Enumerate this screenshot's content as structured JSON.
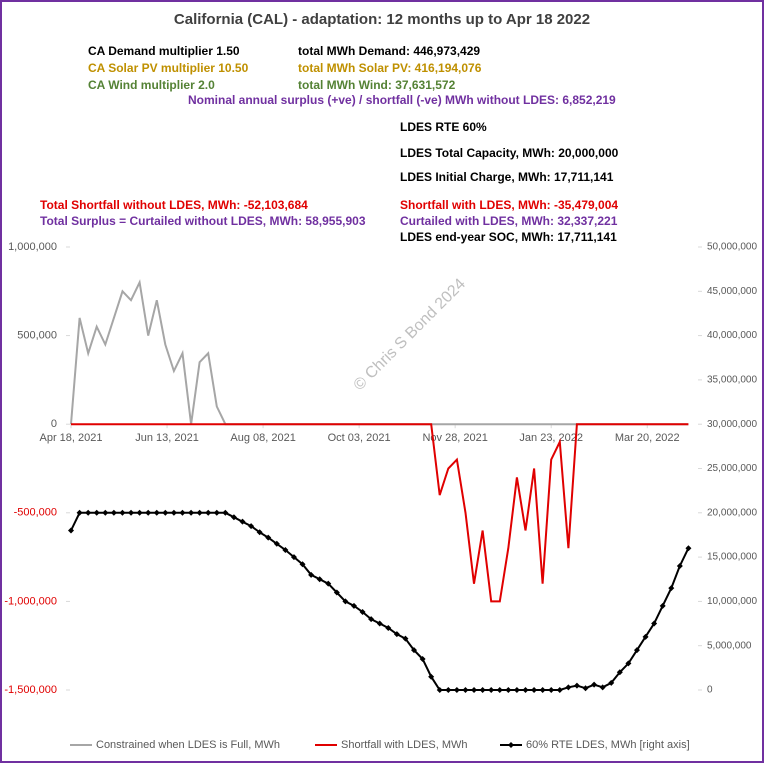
{
  "chart_data": {
    "type": "line",
    "title": "California (CAL) - adaptation:  12 months up to  Apr 18 2022",
    "annotations": [
      {
        "text": "CA Demand multiplier  1.50",
        "color": "#000000"
      },
      {
        "text": "total MWh Demand:  446,973,429",
        "color": "#000000"
      },
      {
        "text": "CA Solar PV multiplier  10.50",
        "color": "#bf9000"
      },
      {
        "text": "total MWh Solar PV:  416,194,076",
        "color": "#bf9000"
      },
      {
        "text": "CA Wind multiplier  2.0",
        "color": "#548235"
      },
      {
        "text": "total MWh Wind:  37,631,572",
        "color": "#548235"
      },
      {
        "text": "Nominal annual surplus (+ve) / shortfall (-ve) MWh without LDES:  6,852,219",
        "color": "#7030a0"
      },
      {
        "text": "LDES RTE 60%",
        "color": "#000000"
      },
      {
        "text": "LDES Total Capacity, MWh:  20,000,000",
        "color": "#000000"
      },
      {
        "text": "LDES Initial Charge, MWh:  17,711,141",
        "color": "#000000"
      },
      {
        "text": "Total Shortfall without LDES, MWh: -52,103,684",
        "color": "#e00000"
      },
      {
        "text": "Total Surplus = Curtailed without LDES, MWh: 58,955,903",
        "color": "#7030a0"
      },
      {
        "text": "Shortfall with LDES, MWh: -35,479,004",
        "color": "#e00000"
      },
      {
        "text": "Curtailed with LDES, MWh: 32,337,221",
        "color": "#7030a0"
      },
      {
        "text": "LDES end-year SOC, MWh: 17,711,141",
        "color": "#000000"
      }
    ],
    "watermark": "© Chris S Bond  2024",
    "x": [
      0,
      5,
      10,
      15,
      20,
      25,
      30,
      35,
      40,
      45,
      50,
      55,
      60,
      65,
      70,
      75,
      80,
      85,
      90,
      95,
      100,
      105,
      110,
      115,
      120,
      125,
      130,
      135,
      140,
      145,
      150,
      155,
      160,
      165,
      170,
      175,
      180,
      185,
      190,
      195,
      200,
      205,
      210,
      215,
      220,
      225,
      230,
      235,
      240,
      245,
      250,
      255,
      260,
      265,
      270,
      275,
      280,
      285,
      290,
      295,
      300,
      305,
      310,
      315,
      320,
      325,
      330,
      335,
      340,
      345,
      350,
      355,
      360
    ],
    "xlim": [
      0,
      365
    ],
    "xticks": [
      {
        "value": 0,
        "label": "Apr 18, 2021"
      },
      {
        "value": 56,
        "label": "Jun 13, 2021"
      },
      {
        "value": 112,
        "label": "Aug 08, 2021"
      },
      {
        "value": 168,
        "label": "Oct 03, 2021"
      },
      {
        "value": 224,
        "label": "Nov 28, 2021"
      },
      {
        "value": 280,
        "label": "Jan 23, 2022"
      },
      {
        "value": 336,
        "label": "Mar 20, 2022"
      }
    ],
    "ylim": [
      -1500000,
      1000000
    ],
    "yticks": [
      {
        "value": -1500000,
        "label": "-1,500,000"
      },
      {
        "value": -1000000,
        "label": "-1,000,000"
      },
      {
        "value": -500000,
        "label": "-500,000"
      },
      0,
      {
        "value": 500000,
        "label": "500,000"
      },
      {
        "value": 1000000,
        "label": "1,000,000"
      }
    ],
    "y2lim": [
      0,
      50000000
    ],
    "y2ticks": [
      0,
      {
        "value": 5000000,
        "label": "5,000,000"
      },
      {
        "value": 10000000,
        "label": "10,000,000"
      },
      {
        "value": 15000000,
        "label": "15,000,000"
      },
      {
        "value": 20000000,
        "label": "20,000,000"
      },
      {
        "value": 25000000,
        "label": "25,000,000"
      },
      {
        "value": 30000000,
        "label": "30,000,000"
      },
      {
        "value": 35000000,
        "label": "35,000,000"
      },
      {
        "value": 40000000,
        "label": "40,000,000"
      },
      {
        "value": 45000000,
        "label": "45,000,000"
      },
      {
        "value": 50000000,
        "label": "50,000,000"
      }
    ],
    "series": [
      {
        "name": "Constrained when LDES is Full, MWh",
        "color": "#a6a6a6",
        "values": [
          0,
          600000,
          400000,
          550000,
          450000,
          600000,
          750000,
          700000,
          800000,
          500000,
          700000,
          450000,
          300000,
          400000,
          0,
          350000,
          400000,
          100000,
          0,
          0,
          0,
          0,
          0,
          0,
          0,
          0,
          0,
          0,
          0,
          0,
          0,
          0,
          0,
          0,
          0,
          0,
          0,
          0,
          0,
          0,
          0,
          0,
          0,
          0,
          0,
          0,
          0,
          0,
          0,
          0,
          0,
          0,
          0,
          0,
          0,
          0,
          0,
          0,
          0,
          0,
          0,
          0,
          0,
          0,
          0,
          0,
          0,
          0,
          0,
          0,
          0,
          0,
          0
        ]
      },
      {
        "name": "Shortfall with LDES, MWh",
        "color": "#e00000",
        "values": [
          0,
          0,
          0,
          0,
          0,
          0,
          0,
          0,
          0,
          0,
          0,
          0,
          0,
          0,
          0,
          0,
          0,
          0,
          0,
          0,
          0,
          0,
          0,
          0,
          0,
          0,
          0,
          0,
          0,
          0,
          0,
          0,
          0,
          0,
          0,
          0,
          0,
          0,
          0,
          0,
          0,
          0,
          0,
          -400000,
          -250000,
          -200000,
          -500000,
          -900000,
          -600000,
          -1000000,
          -1000000,
          -700000,
          -300000,
          -600000,
          -250000,
          -900000,
          -200000,
          -100000,
          -700000,
          0,
          0,
          0,
          0,
          0,
          0,
          0,
          0,
          0,
          0,
          0,
          0,
          0,
          0
        ]
      },
      {
        "name": "60%  RTE LDES, MWh [right axis]",
        "color": "#000000",
        "axis": "y2",
        "marker": "diamond",
        "values": [
          18000000,
          20000000,
          20000000,
          20000000,
          20000000,
          20000000,
          20000000,
          20000000,
          20000000,
          20000000,
          20000000,
          20000000,
          20000000,
          20000000,
          20000000,
          20000000,
          20000000,
          20000000,
          20000000,
          19500000,
          19000000,
          18500000,
          17800000,
          17200000,
          16500000,
          15800000,
          15000000,
          14200000,
          13000000,
          12500000,
          12000000,
          11000000,
          10000000,
          9500000,
          8800000,
          8000000,
          7500000,
          7000000,
          6300000,
          5800000,
          4500000,
          3500000,
          1500000,
          0,
          0,
          0,
          0,
          0,
          0,
          0,
          0,
          0,
          0,
          0,
          0,
          0,
          0,
          0,
          300000,
          500000,
          200000,
          600000,
          300000,
          800000,
          2000000,
          3000000,
          4500000,
          6000000,
          7500000,
          9500000,
          11500000,
          14000000,
          16000000
        ]
      }
    ]
  }
}
